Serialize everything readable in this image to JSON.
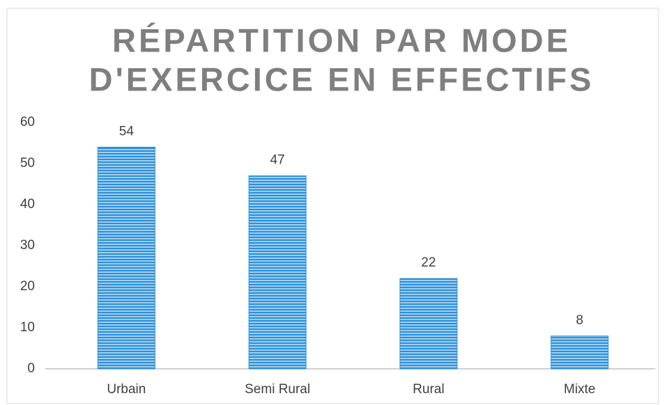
{
  "chart_data": {
    "type": "bar",
    "title": [
      "RÉPARTITION PAR MODE",
      "D'EXERCICE EN EFFECTIFS"
    ],
    "categories": [
      "Urbain",
      "Semi Rural",
      "Rural",
      "Mixte"
    ],
    "values": [
      54,
      47,
      22,
      8
    ],
    "color": "#2e8ed8",
    "ylim": [
      0,
      60
    ],
    "yticks": [
      0,
      10,
      20,
      30,
      40,
      50,
      60
    ],
    "grid": false
  }
}
